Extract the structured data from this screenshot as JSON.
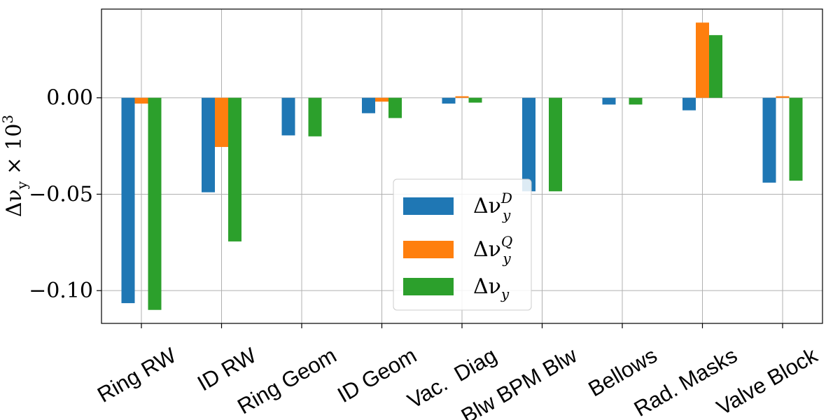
{
  "chart_data": {
    "type": "bar",
    "ylabel": "Δν_y × 10³",
    "ylabel_parts": {
      "main": "Δν",
      "sub": "y",
      "times": " × 10",
      "sup": "3"
    },
    "ylim": [
      -0.117,
      0.046
    ],
    "yticks": [
      0.0,
      -0.05,
      -0.1
    ],
    "ytick_labels": [
      "0.00",
      "−0.05",
      "−0.10"
    ],
    "grid": true,
    "legend_position": "lower-center",
    "categories": [
      "Ring RW",
      "ID RW",
      "Ring Geom",
      "ID Geom",
      "Vac.  Diag",
      "Blw BPM Blw",
      "Bellows",
      "Rad. Masks",
      "Valve Block"
    ],
    "series": [
      {
        "name": "Δν_y^D",
        "legend": {
          "main": "Δν",
          "sub": "y",
          "sup": "D"
        },
        "color": "#1f77b4",
        "values": [
          -0.1065,
          -0.049,
          -0.0195,
          -0.008,
          -0.003,
          -0.0485,
          -0.0035,
          -0.0065,
          -0.044
        ]
      },
      {
        "name": "Δν_y^Q",
        "legend": {
          "main": "Δν",
          "sub": "y",
          "sup": "Q"
        },
        "color": "#ff7f0e",
        "values": [
          -0.003,
          -0.0255,
          0.0,
          -0.002,
          0.0008,
          0.0,
          0.0,
          0.039,
          0.0008
        ]
      },
      {
        "name": "Δν_y",
        "legend": {
          "main": "Δν",
          "sub": "y",
          "sup": ""
        },
        "color": "#2ca02c",
        "values": [
          -0.11,
          -0.0745,
          -0.02,
          -0.0105,
          -0.0025,
          -0.0485,
          -0.0035,
          0.0325,
          -0.043
        ]
      }
    ]
  }
}
